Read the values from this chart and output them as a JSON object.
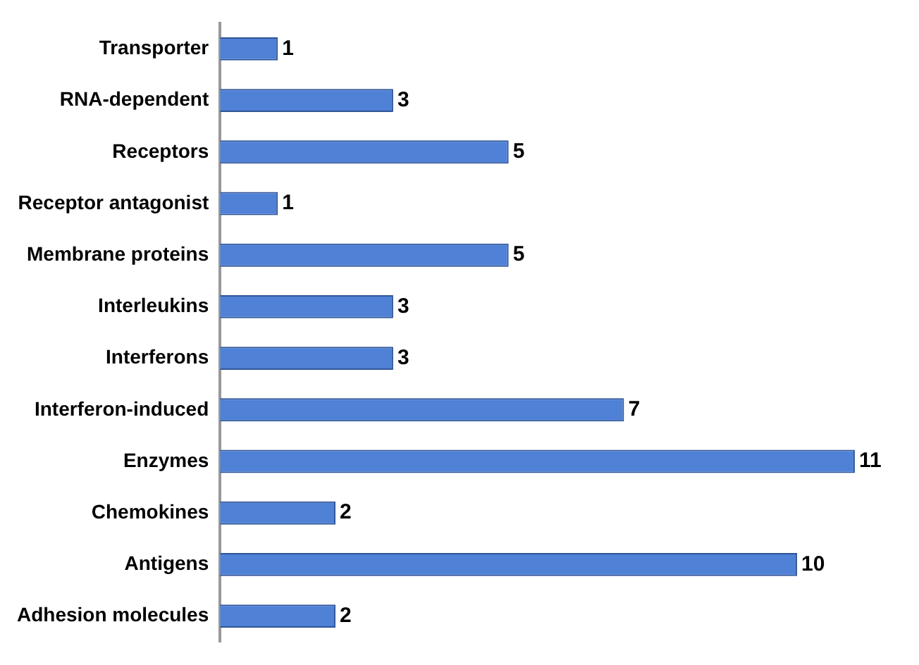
{
  "chart_data": {
    "type": "bar",
    "orientation": "horizontal",
    "data_labels": true,
    "color": "#4f81d6",
    "categories": [
      "Transporter",
      "RNA-dependent",
      "Receptors",
      "Receptor antagonist",
      "Membrane proteins",
      "Interleukins",
      "Interferons",
      "Interferon-induced",
      "Enzymes",
      "Chemokines",
      "Antigens",
      "Adhesion molecules"
    ],
    "values": [
      1,
      3,
      5,
      1,
      5,
      3,
      3,
      7,
      11,
      2,
      10,
      2
    ]
  }
}
